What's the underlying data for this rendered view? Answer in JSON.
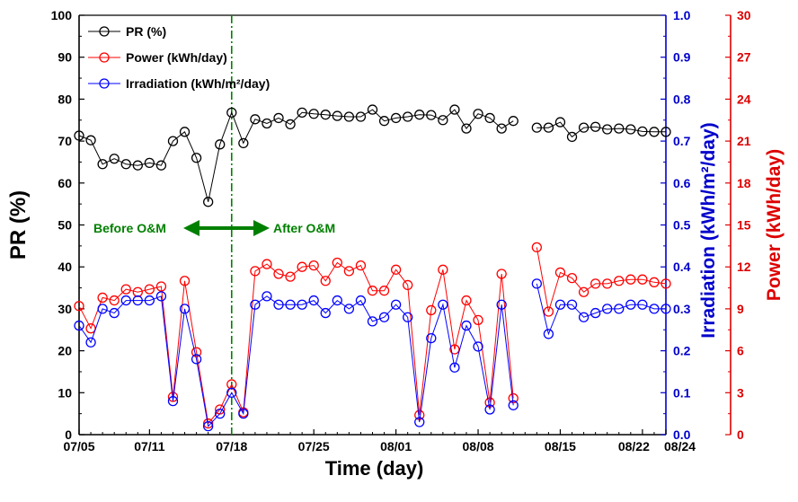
{
  "chart_data": {
    "type": "line",
    "xlabel": "Time (day)",
    "x_tick_labels": [
      "07/05",
      "07/11",
      "07/18",
      "07/25",
      "08/01",
      "08/08",
      "08/15",
      "08/22",
      "08/24"
    ],
    "x_tick_days": [
      0,
      6,
      13,
      20,
      27,
      34,
      41,
      48,
      50
    ],
    "xlim": [
      0,
      50
    ],
    "axes": {
      "left": {
        "label": "PR (%)",
        "lim": [
          0,
          100
        ],
        "ticks": [
          "0",
          "10",
          "20",
          "30",
          "40",
          "50",
          "60",
          "70",
          "80",
          "90",
          "100"
        ],
        "color": "#000000"
      },
      "right1": {
        "label": "Irradiation (kWh/m²/day)",
        "lim": [
          0,
          1.0
        ],
        "ticks": [
          "0.0",
          "0.1",
          "0.2",
          "0.3",
          "0.4",
          "0.5",
          "0.6",
          "0.7",
          "0.8",
          "0.9",
          "1.0"
        ],
        "color": "#0000cc"
      },
      "right2": {
        "label": "Power (kWh/day)",
        "lim": [
          0,
          30
        ],
        "ticks": [
          "0",
          "3",
          "6",
          "9",
          "12",
          "15",
          "18",
          "21",
          "24",
          "27",
          "30"
        ],
        "color": "#dd0000"
      }
    },
    "legend": {
      "placement": "top-left",
      "entries": [
        {
          "label": "PR (%)",
          "color": "#000000"
        },
        {
          "label": "Power (kWh/day)",
          "color": "#ff0000"
        },
        {
          "label": "Irradiation (kWh/m²/day)",
          "color": "#0000ff"
        }
      ]
    },
    "annotations": {
      "divider_day": 13,
      "before": "Before O&M",
      "after": "After O&M",
      "color": "#008000"
    },
    "series": [
      {
        "name": "PR (%)",
        "axis": "left",
        "color": "#000000",
        "segments": [
          {
            "x": [
              0,
              1,
              2,
              3,
              4,
              5,
              6,
              7,
              8,
              9,
              10,
              11,
              12,
              13,
              14,
              15,
              16,
              17,
              18,
              19,
              20,
              21,
              22,
              23,
              24,
              25,
              26,
              27,
              28,
              29,
              30,
              31,
              32,
              33,
              34,
              35,
              36,
              37
            ],
            "y": [
              71.3,
              70.2,
              64.5,
              65.8,
              64.5,
              64.2,
              64.8,
              64.2,
              70.0,
              72.2,
              66.0,
              55.5,
              69.2,
              76.8,
              69.5,
              75.2,
              74.2,
              75.5,
              74.0,
              76.8,
              76.5,
              76.3,
              76.0,
              75.8,
              75.8,
              77.5,
              74.8,
              75.5,
              75.8,
              76.3,
              76.2,
              75.0,
              77.5,
              73.0,
              76.5,
              75.5,
              73.0,
              74.8
            ]
          },
          {
            "x": [
              39,
              40,
              41,
              42,
              43,
              44,
              45,
              46,
              47,
              48,
              49,
              50
            ],
            "y": [
              73.2,
              73.2,
              74.5,
              71.0,
              73.2,
              73.4,
              72.8,
              73.0,
              72.8,
              72.3,
              72.2,
              72.2
            ]
          }
        ]
      },
      {
        "name": "Power (kWh/day)",
        "axis": "right2",
        "color": "#ff0000",
        "segments": [
          {
            "x": [
              0,
              1,
              2,
              3,
              4,
              5,
              6,
              7,
              8,
              9,
              10,
              11,
              12,
              13,
              14,
              15,
              16,
              17,
              18,
              19,
              20,
              21,
              22,
              23,
              24,
              25,
              26,
              27,
              28,
              29,
              30,
              31,
              32,
              33,
              34,
              35,
              36,
              37
            ],
            "y": [
              9.2,
              7.6,
              9.8,
              9.6,
              10.4,
              10.2,
              10.4,
              10.6,
              2.7,
              11.0,
              5.9,
              0.8,
              1.8,
              3.6,
              1.6,
              11.7,
              12.2,
              11.5,
              11.3,
              12.0,
              12.1,
              11.0,
              12.3,
              11.7,
              12.1,
              10.3,
              10.3,
              11.8,
              10.7,
              1.4,
              8.9,
              11.8,
              6.1,
              9.6,
              8.2,
              2.3,
              11.5,
              2.6
            ]
          },
          {
            "x": [
              39,
              40,
              41,
              42,
              43,
              44,
              45,
              46,
              47,
              48,
              49,
              50
            ],
            "y": [
              13.4,
              8.8,
              11.6,
              11.2,
              10.2,
              10.8,
              10.8,
              11.0,
              11.1,
              11.1,
              10.9,
              10.8
            ]
          }
        ]
      },
      {
        "name": "Irradiation (kWh/m²/day)",
        "axis": "right1",
        "color": "#0000ff",
        "segments": [
          {
            "x": [
              0,
              1,
              2,
              3,
              4,
              5,
              6,
              7,
              8,
              9,
              10,
              11,
              12,
              13,
              14,
              15,
              16,
              17,
              18,
              19,
              20,
              21,
              22,
              23,
              24,
              25,
              26,
              27,
              28,
              29,
              30,
              31,
              32,
              33,
              34,
              35,
              36,
              37
            ],
            "y": [
              0.26,
              0.22,
              0.3,
              0.29,
              0.32,
              0.32,
              0.32,
              0.33,
              0.08,
              0.3,
              0.18,
              0.02,
              0.05,
              0.1,
              0.05,
              0.31,
              0.33,
              0.31,
              0.31,
              0.31,
              0.32,
              0.29,
              0.32,
              0.3,
              0.32,
              0.27,
              0.28,
              0.31,
              0.28,
              0.03,
              0.23,
              0.31,
              0.16,
              0.26,
              0.21,
              0.06,
              0.31,
              0.07
            ]
          },
          {
            "x": [
              39,
              40,
              41,
              42,
              43,
              44,
              45,
              46,
              47,
              48,
              49,
              50
            ],
            "y": [
              0.36,
              0.24,
              0.31,
              0.31,
              0.28,
              0.29,
              0.3,
              0.3,
              0.31,
              0.31,
              0.3,
              0.3
            ]
          }
        ]
      }
    ]
  }
}
